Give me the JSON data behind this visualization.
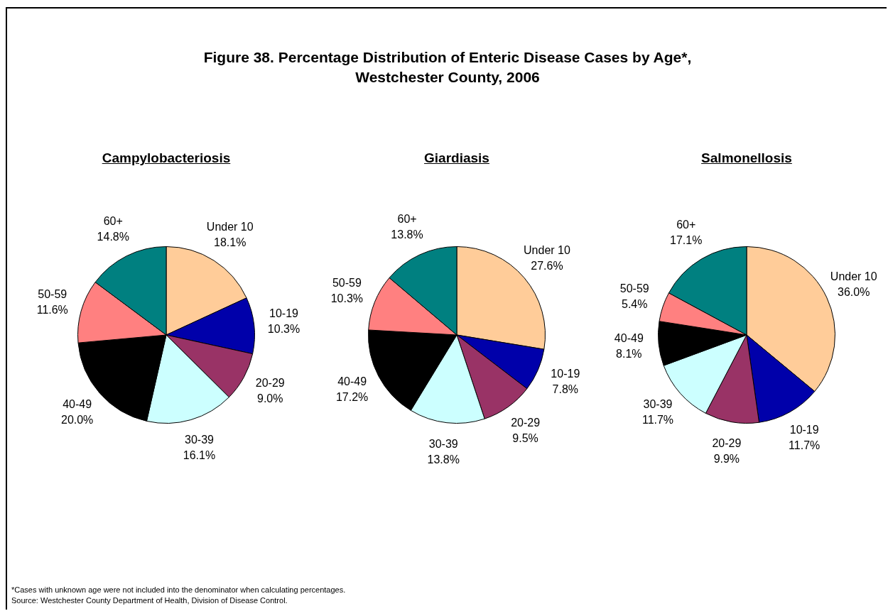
{
  "chart_data": [
    {
      "type": "other",
      "title": "Figure 38. Percentage Distribution of Enteric Disease Cases by Age*,\nWestchester County, 2006",
      "annotations": [
        "*Cases with unknown age were not included into the denominator when calculating percentages.",
        "Source: Westchester County Department of Health, Division of Disease Control."
      ]
    },
    {
      "type": "pie",
      "title": "Campylobacteriosis",
      "categories": [
        "Under 10",
        "10-19",
        "20-29",
        "30-39",
        "40-49",
        "50-59",
        "60+"
      ],
      "values": [
        18.1,
        10.3,
        9.0,
        16.1,
        20.0,
        11.6,
        14.8
      ],
      "value_labels": [
        "18.1%",
        "10.3%",
        "9.0%",
        "16.1%",
        "20.0%",
        "11.6%",
        "14.8%"
      ],
      "colors": [
        "#ffcc99",
        "#0000aa",
        "#993366",
        "#ccffff",
        "#000000",
        "#ff8080",
        "#008080"
      ],
      "legend": false
    },
    {
      "type": "pie",
      "title": "Giardiasis",
      "categories": [
        "Under 10",
        "10-19",
        "20-29",
        "30-39",
        "40-49",
        "50-59",
        "60+"
      ],
      "values": [
        27.6,
        7.8,
        9.5,
        13.8,
        17.2,
        10.3,
        13.8
      ],
      "value_labels": [
        "27.6%",
        "7.8%",
        "9.5%",
        "13.8%",
        "17.2%",
        "10.3%",
        "13.8%"
      ],
      "colors": [
        "#ffcc99",
        "#0000aa",
        "#993366",
        "#ccffff",
        "#000000",
        "#ff8080",
        "#008080"
      ],
      "legend": false
    },
    {
      "type": "pie",
      "title": "Salmonellosis",
      "categories": [
        "Under 10",
        "10-19",
        "20-29",
        "30-39",
        "40-49",
        "50-59",
        "60+"
      ],
      "values": [
        36.0,
        11.7,
        9.9,
        11.7,
        8.1,
        5.4,
        17.1
      ],
      "value_labels": [
        "36.0%",
        "11.7%",
        "9.9%",
        "11.7%",
        "8.1%",
        "5.4%",
        "17.1%"
      ],
      "colors": [
        "#ffcc99",
        "#0000aa",
        "#993366",
        "#ccffff",
        "#000000",
        "#ff8080",
        "#008080"
      ],
      "legend": false
    }
  ]
}
